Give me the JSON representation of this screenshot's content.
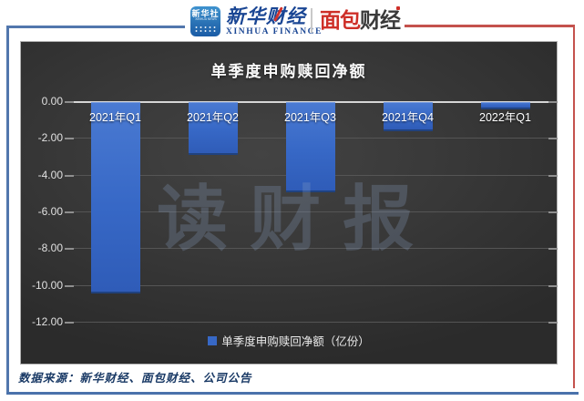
{
  "header": {
    "xinhua_logo": {
      "square_main": "新华社",
      "square_sub": "XINHUA NEWS",
      "brand": "新华财经",
      "brand_sub": "XINHUA FINANCE"
    },
    "mianbao_logo": {
      "part_red": "面包",
      "part_dark": "财经"
    }
  },
  "chart_data": {
    "type": "bar",
    "title": "单季度申购赎回净额",
    "categories": [
      "2021年Q1",
      "2021年Q2",
      "2021年Q3",
      "2021年Q4",
      "2022年Q1"
    ],
    "values": [
      -10.4,
      -2.9,
      -4.9,
      -1.6,
      -0.4
    ],
    "series_name": "单季度申购赎回净额（亿份）",
    "ylabel": "",
    "xlabel": "",
    "ylim": [
      -12,
      0
    ],
    "ytick_step": 2,
    "ytick_labels": [
      "0.00",
      "-2.00",
      "-4.00",
      "-6.00",
      "-8.00",
      "-10.00",
      "-12.00"
    ],
    "grid": true,
    "legend_position": "bottom",
    "bar_color": "#3768c6"
  },
  "watermark": {
    "text": "读财报"
  },
  "footer": {
    "source": "数据来源：新华财经、面包财经、公司公告"
  },
  "colors": {
    "frame_blue": "#5277ad",
    "frame_red": "#c4524d",
    "panel_bg": "#393939",
    "bar_blue": "#3768c6",
    "xinhua_blue": "#1a4694",
    "mianbao_red": "#ce2f28"
  }
}
